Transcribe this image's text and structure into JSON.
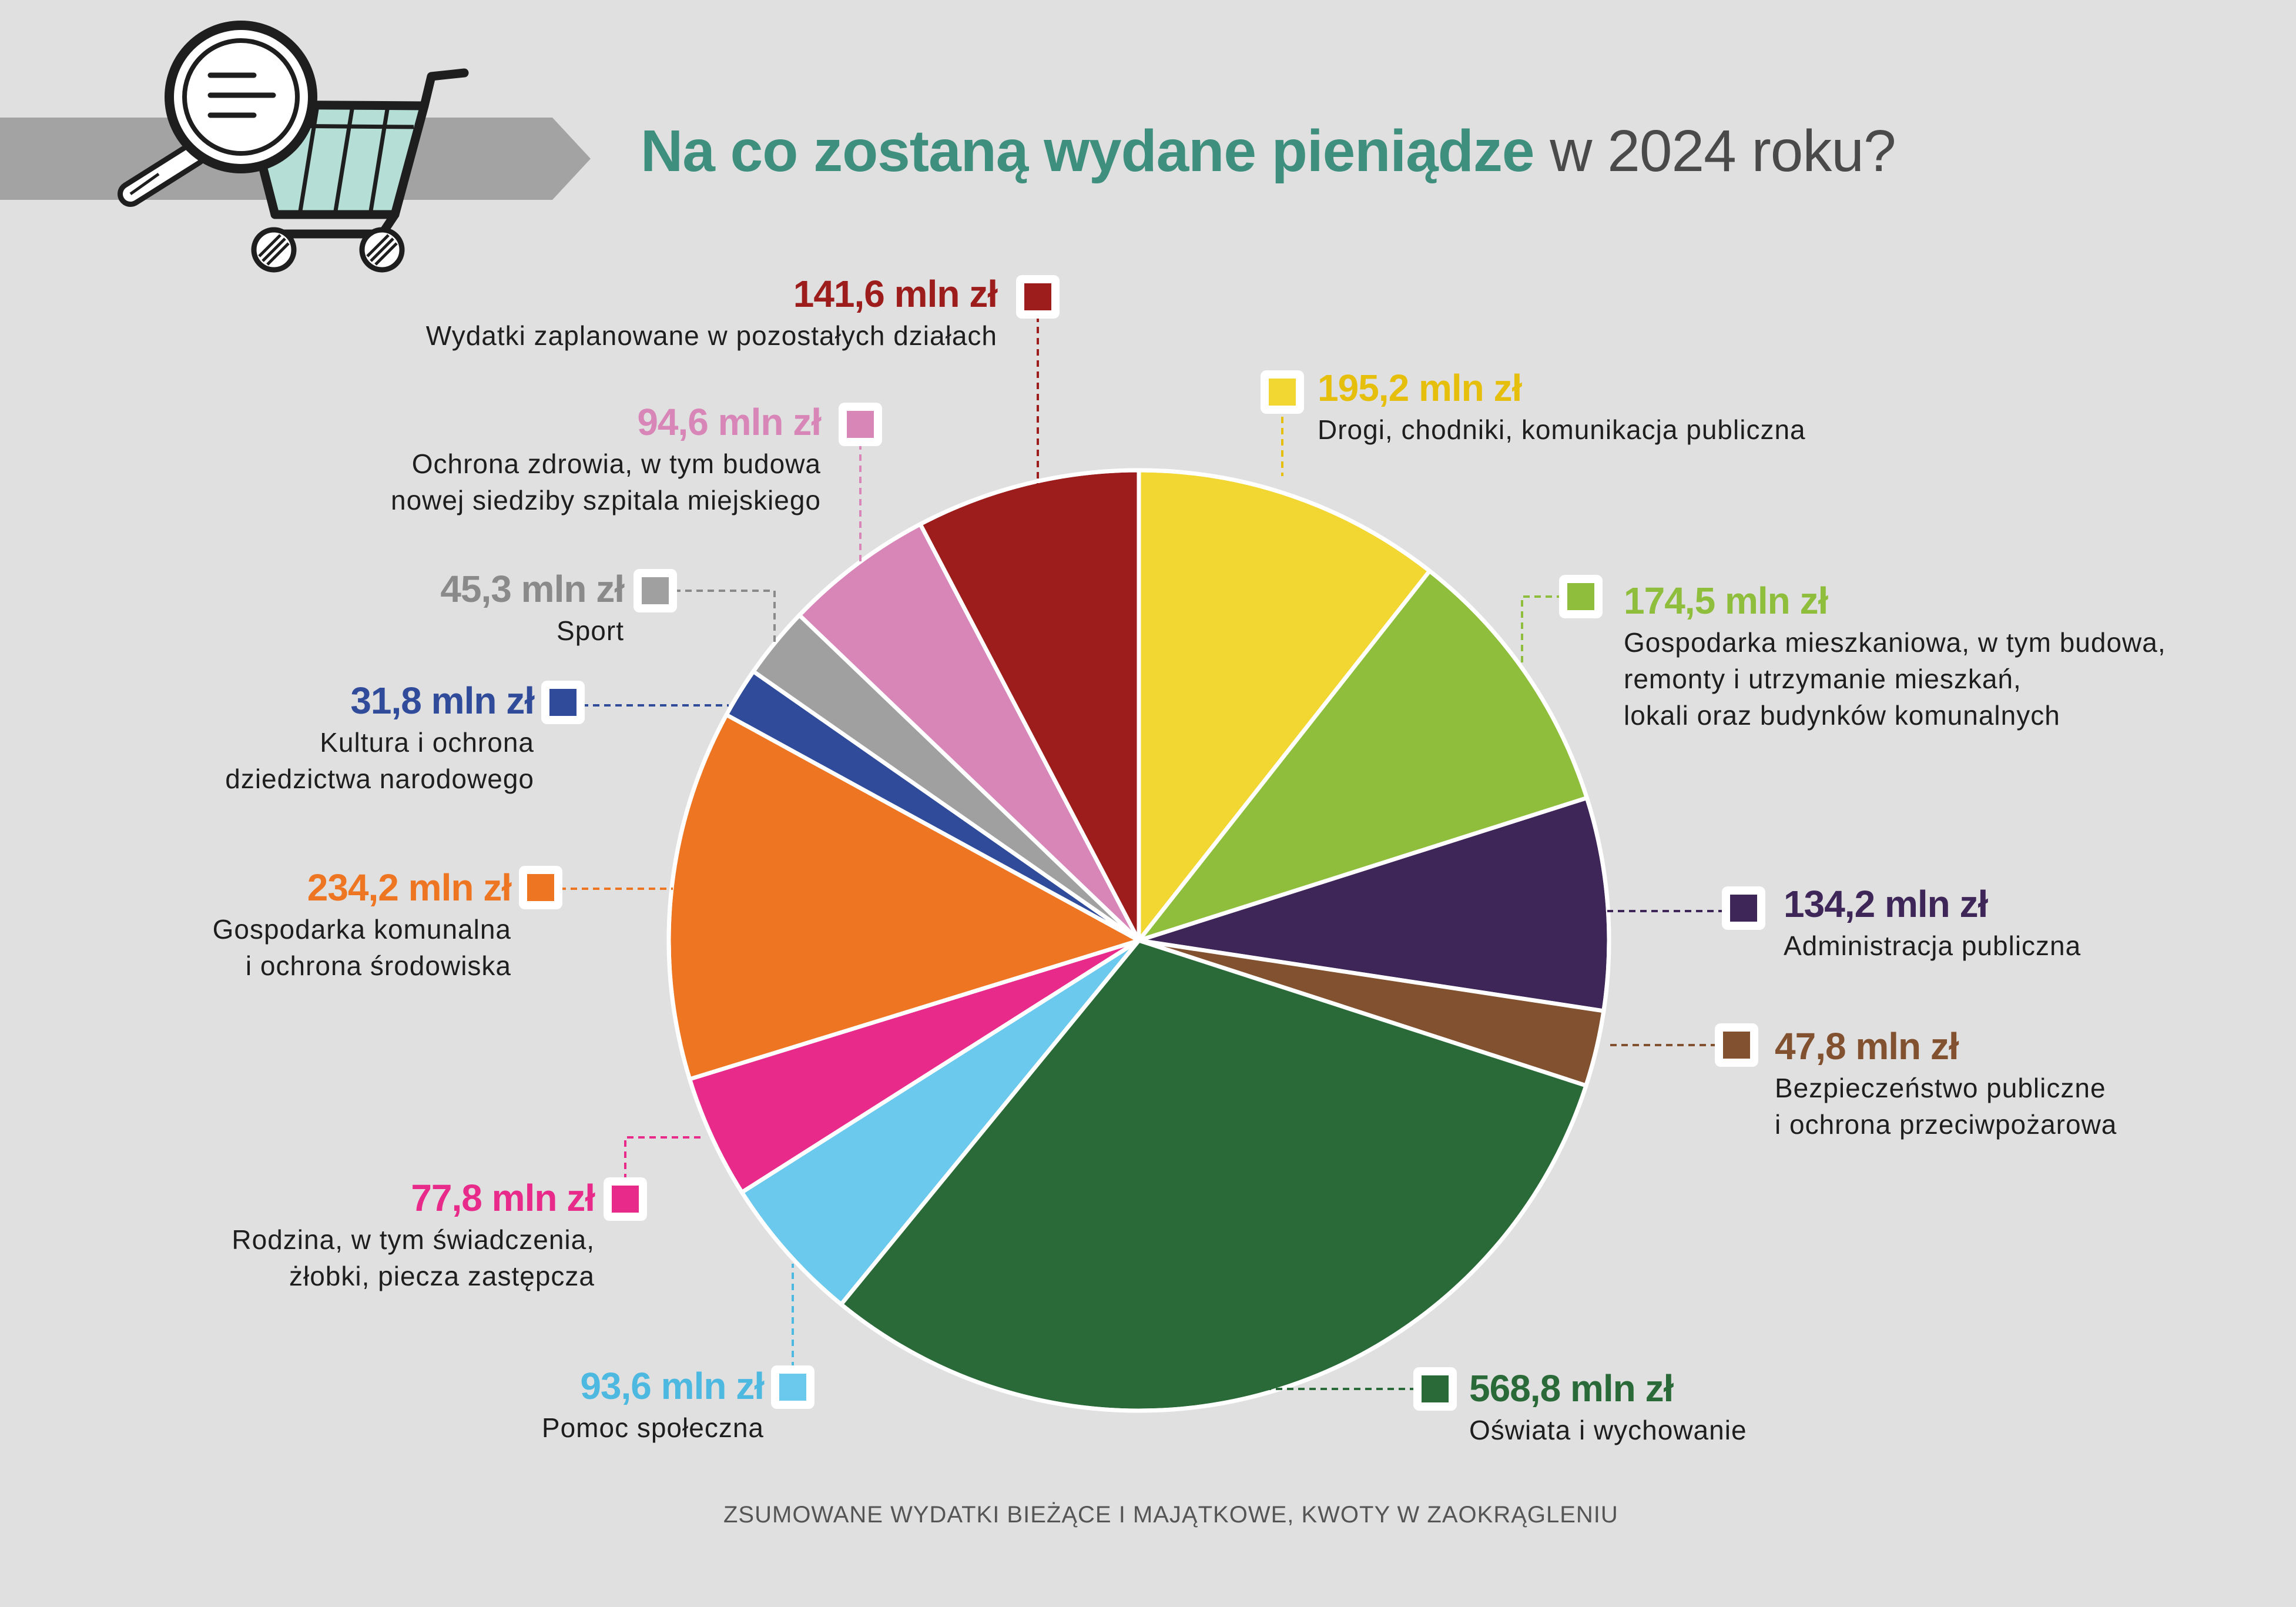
{
  "title": {
    "strong": "Na co zostaną wydane pieniądze",
    "rest": " w 2024 roku?"
  },
  "footnote": "ZSUMOWANE WYDATKI BIEŻĄCE I MAJĄTKOWE, KWOTY W ZAOKRĄGLENIU",
  "icon": "shopping-cart-with-magnifier-icon",
  "chart_data": {
    "type": "pie",
    "title": "Na co zostaną wydane pieniądze w 2024 roku?",
    "unit": "mln zł",
    "start": "12 o'clock, clockwise",
    "slices": [
      {
        "label": "Drogi, chodniki, komunikacja publiczna",
        "value": 195.2,
        "display": "195,2 mln zł",
        "color": "#f2d632",
        "label_color": "#e6bf0c"
      },
      {
        "label": "Gospodarka mieszkaniowa, w tym budowa, remonty i utrzymanie mieszkań, lokali oraz budynków komunalnych",
        "value": 174.5,
        "display": "174,5 mln zł",
        "color": "#8fbe3c",
        "label_color": "#8fbe3c"
      },
      {
        "label": "Administracja publiczna",
        "value": 134.2,
        "display": "134,2 mln zł",
        "color": "#3e2658",
        "label_color": "#3e2658"
      },
      {
        "label": "Bezpieczeństwo publiczne i ochrona przeciwpożarowa",
        "value": 47.8,
        "display": "47,8 mln zł",
        "color": "#82512f",
        "label_color": "#82512f"
      },
      {
        "label": "Oświata i wychowanie",
        "value": 568.8,
        "display": "568,8 mln zł",
        "color": "#2a6a38",
        "label_color": "#2a6a38"
      },
      {
        "label": "Pomoc społeczna",
        "value": 93.6,
        "display": "93,6 mln zł",
        "color": "#6ac9ec",
        "label_color": "#4db8e0"
      },
      {
        "label": "Rodzina, w tym świadczenia, żłobki, piecza zastępcza",
        "value": 77.8,
        "display": "77,8 mln zł",
        "color": "#e82b8a",
        "label_color": "#e82b8a"
      },
      {
        "label": "Gospodarka komunalna i ochrona środowiska",
        "value": 234.2,
        "display": "234,2 mln zł",
        "color": "#ee7623",
        "label_color": "#ee7623"
      },
      {
        "label": "Kultura i ochrona dziedzictwa narodowego",
        "value": 31.8,
        "display": "31,8 mln zł",
        "color": "#2f4b9a",
        "label_color": "#2f4b9a"
      },
      {
        "label": "Sport",
        "value": 45.3,
        "display": "45,3 mln zł",
        "color": "#a0a0a0",
        "label_color": "#8a8a8a"
      },
      {
        "label": "Ochrona zdrowia, w tym budowa nowej siedziby szpitala miejskiego",
        "value": 94.6,
        "display": "94,6 mln zł",
        "color": "#d886b8",
        "label_color": "#d886b8"
      },
      {
        "label": "Wydatki zaplanowane w pozostałych działach",
        "value": 141.6,
        "display": "141,6 mln zł",
        "color": "#9d1c1c",
        "label_color": "#9d1c1c"
      }
    ]
  },
  "labels": [
    {
      "amount": "195,2 mln zł",
      "lines": [
        "Drogi, chodniki, komunikacja publiczna"
      ]
    },
    {
      "amount": "174,5 mln zł",
      "lines": [
        "Gospodarka mieszkaniowa, w tym budowa,",
        "remonty i utrzymanie mieszkań,",
        "lokali oraz budynków komunalnych"
      ]
    },
    {
      "amount": "134,2 mln zł",
      "lines": [
        "Administracja publiczna"
      ]
    },
    {
      "amount": "47,8 mln zł",
      "lines": [
        "Bezpieczeństwo publiczne",
        "i ochrona przeciwpożarowa"
      ]
    },
    {
      "amount": "568,8 mln zł",
      "lines": [
        "Oświata i wychowanie"
      ]
    },
    {
      "amount": "93,6 mln zł",
      "lines": [
        "Pomoc społeczna"
      ]
    },
    {
      "amount": "77,8 mln zł",
      "lines": [
        "Rodzina, w tym świadczenia,",
        "żłobki, piecza zastępcza"
      ]
    },
    {
      "amount": "234,2 mln zł",
      "lines": [
        "Gospodarka komunalna",
        "i ochrona środowiska"
      ]
    },
    {
      "amount": "31,8 mln zł",
      "lines": [
        "Kultura i ochrona",
        "dziedzictwa narodowego"
      ]
    },
    {
      "amount": "45,3 mln zł",
      "lines": [
        "Sport"
      ]
    },
    {
      "amount": "94,6 mln zł",
      "lines": [
        "Ochrona zdrowia, w tym budowa",
        "nowej siedziby szpitala miejskiego"
      ]
    },
    {
      "amount": "141,6 mln zł",
      "lines": [
        "Wydatki zaplanowane w pozostałych działach"
      ]
    }
  ]
}
